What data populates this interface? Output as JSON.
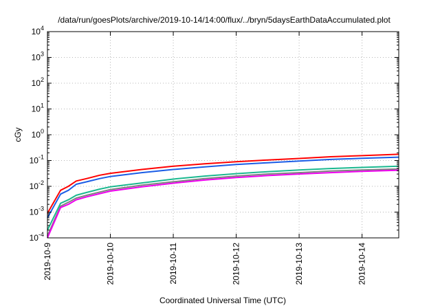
{
  "chart_data": {
    "type": "line",
    "title": "/data/run/goesPlots/archive/2019-10-14/14:00/flux/../bryn/5daysEarthDataAccumulated.plot",
    "xlabel": "Coordinated Universal Time (UTC)",
    "ylabel": "cGy",
    "y_scale": "log",
    "ylim": [
      0.0001,
      10000
    ],
    "y_ticks": [
      {
        "base": "10",
        "exp": "-4",
        "value": 0.0001
      },
      {
        "base": "10",
        "exp": "-3",
        "value": 0.001
      },
      {
        "base": "10",
        "exp": "-2",
        "value": 0.01
      },
      {
        "base": "10",
        "exp": "-1",
        "value": 0.1
      },
      {
        "base": "10",
        "exp": "0",
        "value": 1
      },
      {
        "base": "10",
        "exp": "1",
        "value": 10
      },
      {
        "base": "10",
        "exp": "2",
        "value": 100
      },
      {
        "base": "10",
        "exp": "3",
        "value": 1000
      },
      {
        "base": "10",
        "exp": "4",
        "value": 10000
      }
    ],
    "xlim": [
      "2019-10-09T00:00",
      "2019-10-14T14:00"
    ],
    "x_ticks": [
      "2019-10-9",
      "2019-10-10",
      "2019-10-11",
      "2019-10-12",
      "2019-10-13",
      "2019-10-14"
    ],
    "x_tick_dates": [
      "2019-10-09",
      "2019-10-10",
      "2019-10-11",
      "2019-10-12",
      "2019-10-13",
      "2019-10-14"
    ],
    "grid": true,
    "x": [
      "2019-10-09T00:00",
      "2019-10-09T05:00",
      "2019-10-09T08:00",
      "2019-10-09T11:00",
      "2019-10-09T15:00",
      "2019-10-09T20:00",
      "2019-10-10T00:00",
      "2019-10-10T12:00",
      "2019-10-11T00:00",
      "2019-10-11T12:00",
      "2019-10-12T00:00",
      "2019-10-12T12:00",
      "2019-10-13T00:00",
      "2019-10-13T12:00",
      "2019-10-14T00:00",
      "2019-10-14T14:00"
    ],
    "series": [
      {
        "color": "#ff0000",
        "values": [
          0.0009,
          0.007,
          0.01,
          0.016,
          0.02,
          0.027,
          0.032,
          0.045,
          0.06,
          0.075,
          0.09,
          0.105,
          0.12,
          0.14,
          0.155,
          0.175
        ]
      },
      {
        "color": "#1a5ce6",
        "values": [
          0.0006,
          0.005,
          0.007,
          0.012,
          0.015,
          0.02,
          0.024,
          0.034,
          0.045,
          0.057,
          0.07,
          0.082,
          0.095,
          0.11,
          0.122,
          0.135
        ]
      },
      {
        "color": "#1ab88f",
        "values": [
          0.0002,
          0.0022,
          0.003,
          0.0045,
          0.0058,
          0.0078,
          0.0095,
          0.0135,
          0.019,
          0.025,
          0.031,
          0.037,
          0.043,
          0.049,
          0.054,
          0.06
        ]
      },
      {
        "color": "#7f7f7f",
        "values": [
          0.00012,
          0.0017,
          0.0024,
          0.0035,
          0.0045,
          0.006,
          0.0075,
          0.011,
          0.015,
          0.02,
          0.025,
          0.03,
          0.034,
          0.039,
          0.043,
          0.047
        ]
      },
      {
        "color": "#ee00ee",
        "values": [
          0.0001,
          0.0015,
          0.002,
          0.003,
          0.0039,
          0.0052,
          0.0065,
          0.0095,
          0.0132,
          0.0175,
          0.022,
          0.026,
          0.03,
          0.034,
          0.038,
          0.042
        ]
      }
    ]
  }
}
